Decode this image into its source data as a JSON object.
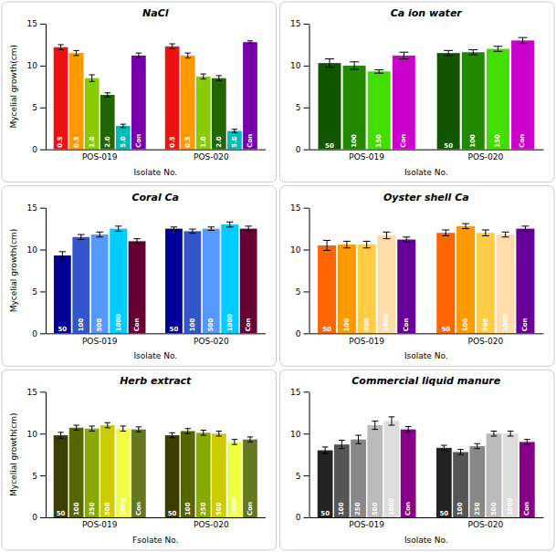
{
  "chart_data": [
    {
      "type": "bar",
      "title": "NaCl",
      "categories": [
        "POS-019",
        "POS-020"
      ],
      "series": [
        {
          "name": "0.5",
          "color": "#ee1111",
          "values": [
            12.2,
            12.3
          ],
          "errors": [
            0.3,
            0.3
          ]
        },
        {
          "name": "0.5",
          "color": "#ff9900",
          "values": [
            11.5,
            11.2
          ],
          "errors": [
            0.3,
            0.3
          ]
        },
        {
          "name": "1.0",
          "color": "#88cc00",
          "values": [
            8.5,
            8.7
          ],
          "errors": [
            0.4,
            0.3
          ]
        },
        {
          "name": "2.0",
          "color": "#226600",
          "values": [
            6.5,
            8.5
          ],
          "errors": [
            0.25,
            0.3
          ]
        },
        {
          "name": "5.0",
          "color": "#00bbbb",
          "values": [
            2.8,
            2.2
          ],
          "errors": [
            0.2,
            0.2
          ]
        },
        {
          "name": "Con",
          "color": "#7700aa",
          "values": [
            11.2,
            12.8
          ],
          "errors": [
            0.3,
            0.15
          ]
        }
      ],
      "xlabel": "Isolate No.",
      "ylabel": "Mycelial growth(cm)",
      "ylim": [
        0,
        15
      ],
      "yticks": [
        0,
        5,
        10,
        15
      ],
      "grid": false
    },
    {
      "type": "bar",
      "title": "Ca ion water",
      "categories": [
        "POS-019",
        "POS-020"
      ],
      "series": [
        {
          "name": "50",
          "color": "#115500",
          "values": [
            10.3,
            11.5
          ],
          "errors": [
            0.5,
            0.3
          ]
        },
        {
          "name": "100",
          "color": "#228800",
          "values": [
            10.0,
            11.6
          ],
          "errors": [
            0.45,
            0.3
          ]
        },
        {
          "name": "150",
          "color": "#44dd00",
          "values": [
            9.3,
            12.0
          ],
          "errors": [
            0.2,
            0.3
          ]
        },
        {
          "name": "Con",
          "color": "#cc00cc",
          "values": [
            11.2,
            13.0
          ],
          "errors": [
            0.4,
            0.35
          ]
        }
      ],
      "xlabel": "Isolate No.",
      "ylim": [
        0,
        15
      ],
      "yticks": [
        0,
        5,
        10,
        15
      ],
      "grid": false
    },
    {
      "type": "bar",
      "title": "Coral Ca",
      "categories": [
        "POS-019",
        "POS-020"
      ],
      "series": [
        {
          "name": "50",
          "color": "#000099",
          "values": [
            9.3,
            12.5
          ],
          "errors": [
            0.45,
            0.2
          ]
        },
        {
          "name": "100",
          "color": "#3355cc",
          "values": [
            11.5,
            12.2
          ],
          "errors": [
            0.3,
            0.25
          ]
        },
        {
          "name": "500",
          "color": "#5599ff",
          "values": [
            11.8,
            12.5
          ],
          "errors": [
            0.3,
            0.2
          ]
        },
        {
          "name": "1000",
          "color": "#00ccff",
          "values": [
            12.5,
            13.0
          ],
          "errors": [
            0.3,
            0.3
          ]
        },
        {
          "name": "Con",
          "color": "#660033",
          "values": [
            11.0,
            12.5
          ],
          "errors": [
            0.3,
            0.3
          ]
        }
      ],
      "xlabel": "Isolate No.",
      "ylabel": "Mycelial growth(cm)",
      "ylim": [
        0,
        15
      ],
      "yticks": [
        0,
        5,
        10,
        15
      ],
      "grid": false
    },
    {
      "type": "bar",
      "title": "Oyster shell Ca",
      "categories": [
        "POS-019",
        "POS-020"
      ],
      "series": [
        {
          "name": "50",
          "color": "#ff6600",
          "values": [
            10.5,
            12.0
          ],
          "errors": [
            0.6,
            0.35
          ]
        },
        {
          "name": "100",
          "color": "#ff9900",
          "values": [
            10.6,
            12.8
          ],
          "errors": [
            0.4,
            0.3
          ]
        },
        {
          "name": "500",
          "color": "#ffcc44",
          "values": [
            10.6,
            12.0
          ],
          "errors": [
            0.4,
            0.35
          ]
        },
        {
          "name": "1000",
          "color": "#ffddaa",
          "values": [
            11.7,
            11.8
          ],
          "errors": [
            0.4,
            0.3
          ]
        },
        {
          "name": "Con",
          "color": "#660099",
          "values": [
            11.2,
            12.5
          ],
          "errors": [
            0.3,
            0.3
          ]
        }
      ],
      "xlabel": "Isolate No.",
      "ylim": [
        0,
        15
      ],
      "yticks": [
        0,
        5,
        10,
        15
      ],
      "grid": false
    },
    {
      "type": "bar",
      "title": "Herb extract",
      "categories": [
        "POS-019",
        "POS-020"
      ],
      "series": [
        {
          "name": "50",
          "color": "#3d3d00",
          "values": [
            9.8,
            9.8
          ],
          "errors": [
            0.35,
            0.3
          ]
        },
        {
          "name": "100",
          "color": "#556600",
          "values": [
            10.7,
            10.3
          ],
          "errors": [
            0.3,
            0.3
          ]
        },
        {
          "name": "250",
          "color": "#88aa00",
          "values": [
            10.6,
            10.1
          ],
          "errors": [
            0.3,
            0.3
          ]
        },
        {
          "name": "500",
          "color": "#cccc00",
          "values": [
            11.0,
            10.0
          ],
          "errors": [
            0.3,
            0.3
          ]
        },
        {
          "name": "1000",
          "color": "#eeff44",
          "values": [
            10.6,
            9.0
          ],
          "errors": [
            0.3,
            0.3
          ]
        },
        {
          "name": "Con",
          "color": "#667722",
          "values": [
            10.5,
            9.3
          ],
          "errors": [
            0.3,
            0.3
          ]
        }
      ],
      "xlabel": "Fsolate No.",
      "ylabel": "Mycelial growth(cm)",
      "ylim": [
        0,
        15
      ],
      "yticks": [
        0,
        5,
        10,
        15
      ],
      "grid": false
    },
    {
      "type": "bar",
      "title": "Commercial liquid manure",
      "categories": [
        "POS-019",
        "POS-020"
      ],
      "series": [
        {
          "name": "50",
          "color": "#222222",
          "values": [
            8.0,
            8.3
          ],
          "errors": [
            0.4,
            0.3
          ]
        },
        {
          "name": "100",
          "color": "#555555",
          "values": [
            8.7,
            7.8
          ],
          "errors": [
            0.5,
            0.3
          ]
        },
        {
          "name": "250",
          "color": "#888888",
          "values": [
            9.3,
            8.5
          ],
          "errors": [
            0.5,
            0.3
          ]
        },
        {
          "name": "500",
          "color": "#bbbbbb",
          "values": [
            11.0,
            10.0
          ],
          "errors": [
            0.5,
            0.3
          ]
        },
        {
          "name": "1000",
          "color": "#dddddd",
          "values": [
            11.5,
            10.0
          ],
          "errors": [
            0.5,
            0.3
          ]
        },
        {
          "name": "Con",
          "color": "#880088",
          "values": [
            10.5,
            9.0
          ],
          "errors": [
            0.35,
            0.3
          ]
        }
      ],
      "xlabel": "Isolate No.",
      "ylim": [
        0,
        15
      ],
      "yticks": [
        0,
        5,
        10,
        15
      ],
      "grid": false
    }
  ]
}
